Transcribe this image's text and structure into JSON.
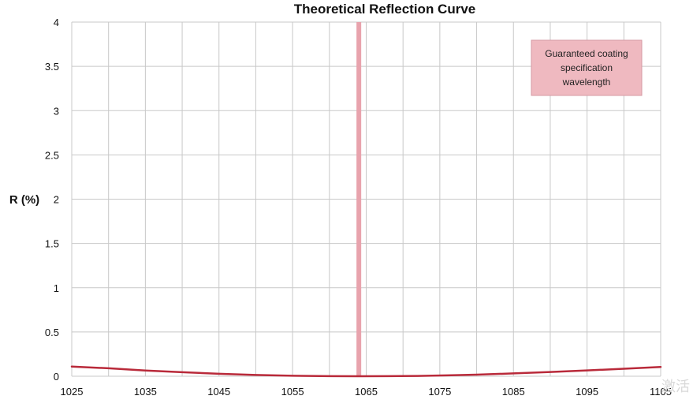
{
  "chart_data": {
    "type": "line",
    "title": "Theoretical Reflection Curve",
    "xlabel": "",
    "ylabel": "R (%)",
    "xlim": [
      1025,
      1105
    ],
    "ylim": [
      0,
      4
    ],
    "x_ticks": [
      "1025",
      "1035",
      "1045",
      "1055",
      "1065",
      "1075",
      "1085",
      "1095",
      "1105"
    ],
    "y_ticks": [
      "0",
      "0.5",
      "1",
      "1.5",
      "2",
      "2.5",
      "3",
      "3.5",
      "4"
    ],
    "x_tick_values": [
      1025,
      1035,
      1045,
      1055,
      1065,
      1075,
      1085,
      1095,
      1105
    ],
    "y_tick_values": [
      0,
      0.5,
      1,
      1.5,
      2,
      2.5,
      3,
      3.5,
      4
    ],
    "grid": true,
    "series": [
      {
        "name": "",
        "color": "#b92a3a",
        "x": [
          1025,
          1030,
          1035,
          1040,
          1045,
          1050,
          1055,
          1060,
          1064,
          1068,
          1072,
          1076,
          1080,
          1085,
          1090,
          1095,
          1100,
          1105
        ],
        "y": [
          0.11,
          0.09,
          0.065,
          0.045,
          0.028,
          0.014,
          0.005,
          0.001,
          0.0,
          0.001,
          0.004,
          0.01,
          0.018,
          0.032,
          0.048,
          0.066,
          0.085,
          0.105
        ]
      }
    ],
    "highlight": {
      "x": 1064,
      "color": "#e8a3ad"
    },
    "annotation": {
      "lines": [
        "Guaranteed coating",
        "specification",
        "wavelength"
      ],
      "fill": "#efb9c0",
      "position": "top-right"
    },
    "watermark": "激活"
  }
}
